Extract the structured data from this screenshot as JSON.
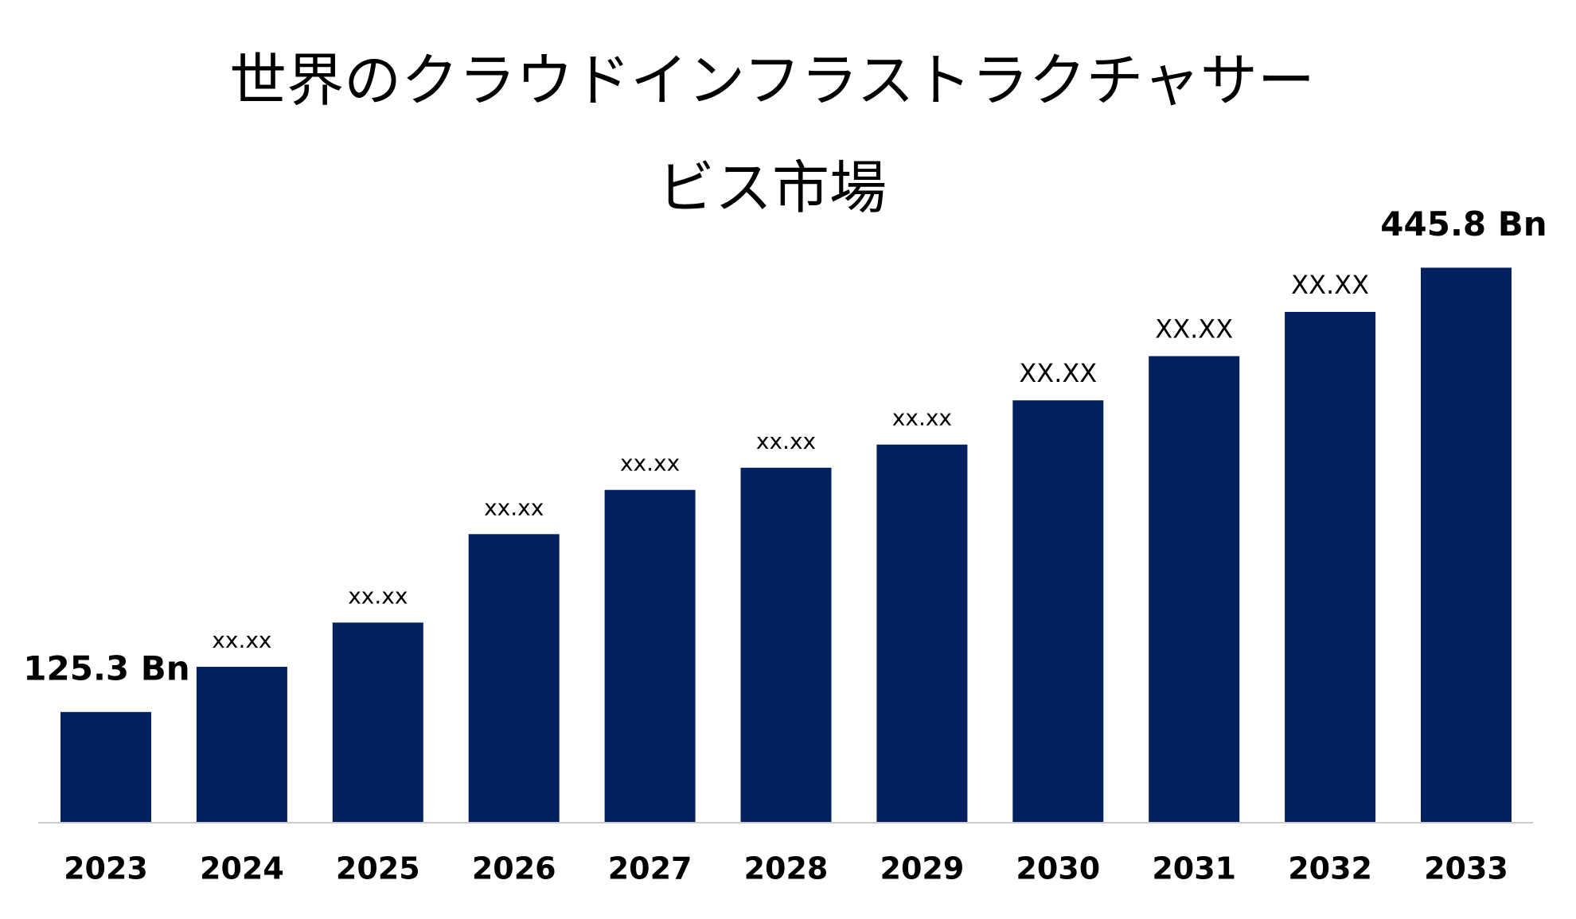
{
  "chart_data": {
    "type": "bar",
    "title": "世界のクラウドインフラストラクチャサービス市場",
    "categories": [
      "2023",
      "2024",
      "2025",
      "2026",
      "2027",
      "2028",
      "2029",
      "2030",
      "2031",
      "2032",
      "2033"
    ],
    "values": [
      125.3,
      157.9,
      189.8,
      253.6,
      285.5,
      301.5,
      318.2,
      350.1,
      382.0,
      413.9,
      445.8
    ],
    "value_labels": [
      "125.3 Bn",
      "xx.xx",
      "xx.xx",
      "xx.xx",
      "xx.xx",
      "xx.xx",
      "xx.xx",
      "XX.XX",
      "XX.XX",
      "XX.XX",
      "445.8 Bn"
    ],
    "color": "#03215e",
    "ylim": [
      46,
      500
    ]
  }
}
